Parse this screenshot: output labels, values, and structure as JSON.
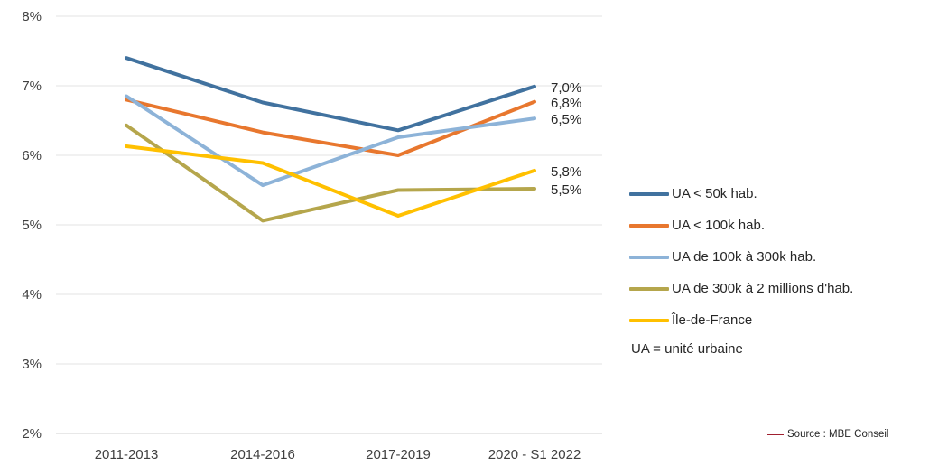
{
  "chart_data": {
    "type": "line",
    "categories": [
      "2011-2013",
      "2014-2016",
      "2017-2019",
      "2020 - S1 2022"
    ],
    "y_ticks": [
      "2%",
      "3%",
      "4%",
      "5%",
      "6%",
      "7%",
      "8%"
    ],
    "ylim": [
      2,
      8
    ],
    "grid": true,
    "legend_position": "right",
    "series": [
      {
        "name": "UA < 50k hab.",
        "values": [
          7.4,
          6.76,
          6.36,
          6.99
        ],
        "color": "#41729f",
        "end_label": "7,0%"
      },
      {
        "name": "UA < 100k hab.",
        "values": [
          6.8,
          6.33,
          6.0,
          6.77
        ],
        "color": "#e8772e",
        "end_label": "6,8%"
      },
      {
        "name": "UA de 100k à 300k hab.",
        "values": [
          6.85,
          5.57,
          6.26,
          6.53
        ],
        "color": "#8db3d8",
        "end_label": "6,5%"
      },
      {
        "name": "UA de 300k à 2 millions d'hab.",
        "values": [
          6.43,
          5.06,
          5.5,
          5.52
        ],
        "color": "#b5a64c",
        "end_label": "5,5%"
      },
      {
        "name": "Île-de-France",
        "values": [
          6.13,
          5.89,
          5.13,
          5.78
        ],
        "color": "#ffc000",
        "end_label": "5,8%"
      }
    ],
    "legend_note": "UA = unité urbaine"
  },
  "source": "Source : MBE Conseil"
}
